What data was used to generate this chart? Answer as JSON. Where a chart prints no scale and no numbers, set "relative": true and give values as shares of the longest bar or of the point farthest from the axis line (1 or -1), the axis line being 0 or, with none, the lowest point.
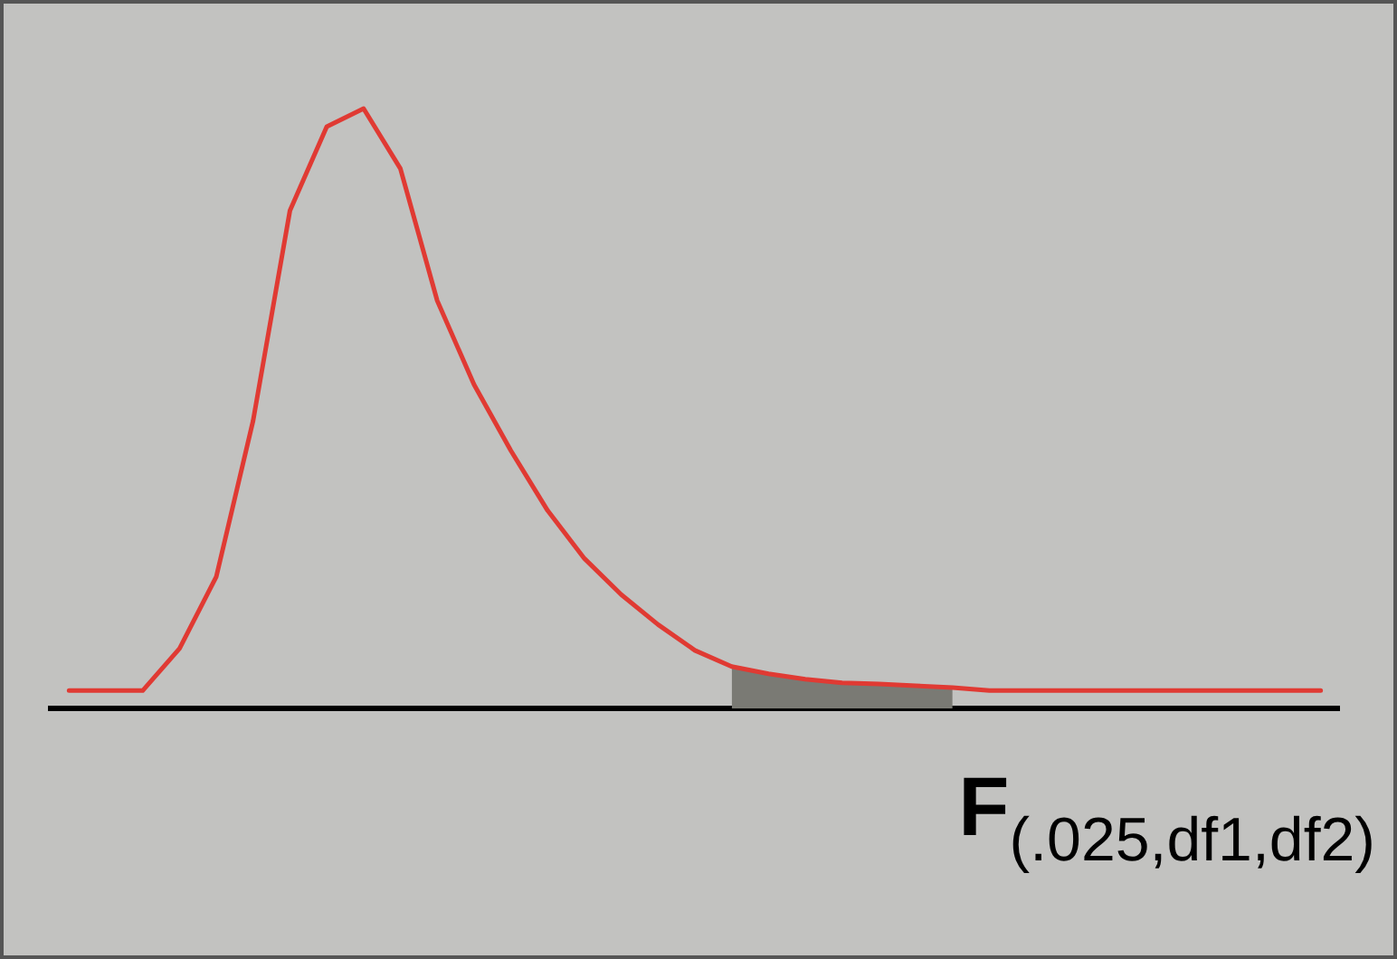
{
  "chart_data": {
    "type": "line",
    "relative": true,
    "marker": "none",
    "line_style": "solid",
    "categories": [
      null,
      null,
      null,
      null,
      null,
      null,
      null,
      null,
      null,
      null,
      null,
      null,
      null,
      null,
      null,
      null,
      null,
      null,
      null,
      null,
      null,
      null,
      null,
      null,
      null,
      null,
      null,
      null,
      null,
      null,
      null,
      null,
      null,
      null,
      null
    ],
    "series": [
      {
        "color": "#e03a33",
        "values": [
          0.03,
          0.03,
          0.03,
          0.1,
          0.22,
          0.48,
          0.83,
          0.97,
          1,
          0.9,
          0.68,
          0.54,
          0.43,
          0.33,
          0.25,
          0.19,
          0.14,
          0.097,
          0.07,
          0.058,
          0.049,
          0.043,
          0.041,
          0.038,
          0.035,
          0.03,
          0.03,
          0.03,
          0.03,
          0.03,
          0.03,
          0.03,
          0.03,
          0.03,
          0.03
        ]
      },
      {
        "type": "area",
        "color": "#7a7a74",
        "values": [
          null,
          null,
          null,
          null,
          null,
          null,
          null,
          null,
          null,
          null,
          null,
          null,
          null,
          null,
          null,
          null,
          null,
          null,
          0.07,
          0.058,
          0.049,
          0.043,
          0.041,
          0.038,
          0.035,
          null,
          null,
          null,
          null,
          null,
          null,
          null,
          null,
          null,
          null
        ]
      }
    ],
    "annotations": [
      "F$_{(.025,df1,df2)}$"
    ]
  }
}
